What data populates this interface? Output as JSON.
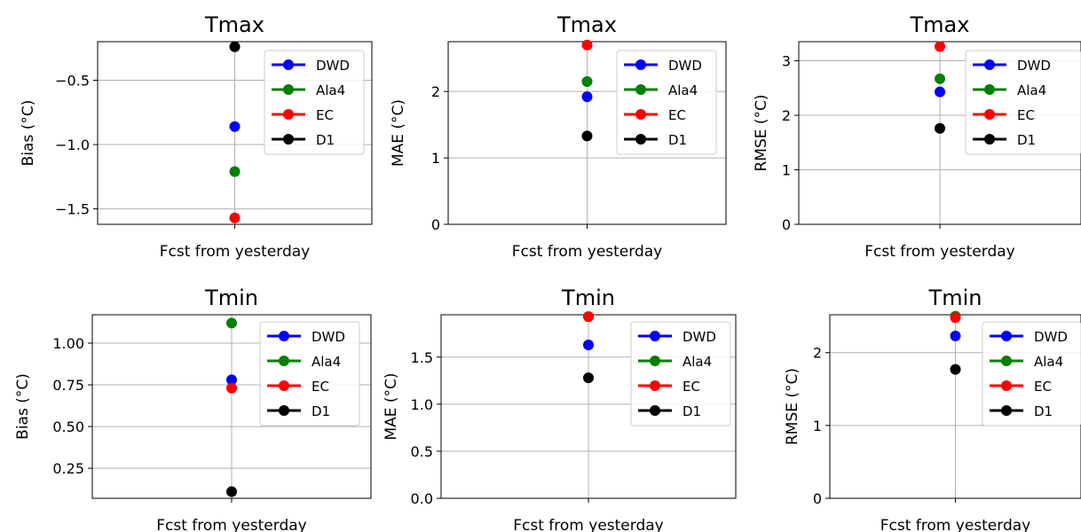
{
  "series_colors": {
    "DWD": "#0000ff",
    "Ala4": "#008000",
    "EC": "#ff0000",
    "D1": "#000000"
  },
  "chart_data": [
    {
      "type": "scatter",
      "title": "Tmax",
      "xlabel": "Fcst from yesterday",
      "ylabel": "Bias (°C)",
      "ylim": [
        -1.62,
        -0.2
      ],
      "yticks": [
        -1.5,
        -1.0,
        -0.5
      ],
      "ytick_labels": [
        "−1.5",
        "−1.0",
        "−0.5"
      ],
      "grid": true,
      "legend_position": "upper right",
      "series": [
        {
          "name": "DWD",
          "values": [
            -0.86
          ]
        },
        {
          "name": "Ala4",
          "values": [
            -1.21
          ]
        },
        {
          "name": "EC",
          "values": [
            -1.57
          ]
        },
        {
          "name": "D1",
          "values": [
            -0.24
          ]
        }
      ]
    },
    {
      "type": "scatter",
      "title": "Tmax",
      "xlabel": "Fcst from yesterday",
      "ylabel": "MAE (°C)",
      "ylim": [
        0,
        2.75
      ],
      "yticks": [
        0,
        1,
        2
      ],
      "ytick_labels": [
        "0",
        "1",
        "2"
      ],
      "grid": true,
      "legend_position": "upper right",
      "series": [
        {
          "name": "DWD",
          "values": [
            1.92
          ]
        },
        {
          "name": "Ala4",
          "values": [
            2.15
          ]
        },
        {
          "name": "EC",
          "values": [
            2.7
          ]
        },
        {
          "name": "D1",
          "values": [
            1.33
          ]
        }
      ]
    },
    {
      "type": "scatter",
      "title": "Tmax",
      "xlabel": "Fcst from yesterday",
      "ylabel": "RMSE (°C)",
      "ylim": [
        0,
        3.35
      ],
      "yticks": [
        0,
        1,
        2,
        3
      ],
      "ytick_labels": [
        "0",
        "1",
        "2",
        "3"
      ],
      "grid": true,
      "legend_position": "upper right",
      "series": [
        {
          "name": "DWD",
          "values": [
            2.43
          ]
        },
        {
          "name": "Ala4",
          "values": [
            2.67
          ]
        },
        {
          "name": "EC",
          "values": [
            3.26
          ]
        },
        {
          "name": "D1",
          "values": [
            1.76
          ]
        }
      ]
    },
    {
      "type": "scatter",
      "title": "Tmin",
      "xlabel": "Fcst from yesterday",
      "ylabel": "Bias (°C)",
      "ylim": [
        0.07,
        1.17
      ],
      "yticks": [
        0.25,
        0.5,
        0.75,
        1.0
      ],
      "ytick_labels": [
        "0.25",
        "0.50",
        "0.75",
        "1.00"
      ],
      "grid": true,
      "legend_position": "upper right",
      "series": [
        {
          "name": "DWD",
          "values": [
            0.78
          ]
        },
        {
          "name": "Ala4",
          "values": [
            1.12
          ]
        },
        {
          "name": "EC",
          "values": [
            0.73
          ]
        },
        {
          "name": "D1",
          "values": [
            0.11
          ]
        }
      ]
    },
    {
      "type": "scatter",
      "title": "Tmin",
      "xlabel": "Fcst from yesterday",
      "ylabel": "MAE (°C)",
      "ylim": [
        0,
        1.95
      ],
      "yticks": [
        0,
        0.5,
        1.0,
        1.5
      ],
      "ytick_labels": [
        "0.0",
        "0.5",
        "1.0",
        "1.5"
      ],
      "grid": true,
      "legend_position": "upper right",
      "series": [
        {
          "name": "DWD",
          "values": [
            1.63
          ]
        },
        {
          "name": "Ala4",
          "values": [
            1.93
          ]
        },
        {
          "name": "EC",
          "values": [
            1.93
          ]
        },
        {
          "name": "D1",
          "values": [
            1.28
          ]
        }
      ]
    },
    {
      "type": "scatter",
      "title": "Tmin",
      "xlabel": "Fcst from yesterday",
      "ylabel": "RMSE (°C)",
      "ylim": [
        0,
        2.52
      ],
      "yticks": [
        0,
        1,
        2
      ],
      "ytick_labels": [
        "0",
        "1",
        "2"
      ],
      "grid": true,
      "legend_position": "upper right",
      "series": [
        {
          "name": "DWD",
          "values": [
            2.23
          ]
        },
        {
          "name": "Ala4",
          "values": [
            2.5
          ]
        },
        {
          "name": "EC",
          "values": [
            2.48
          ]
        },
        {
          "name": "D1",
          "values": [
            1.77
          ]
        }
      ]
    }
  ]
}
